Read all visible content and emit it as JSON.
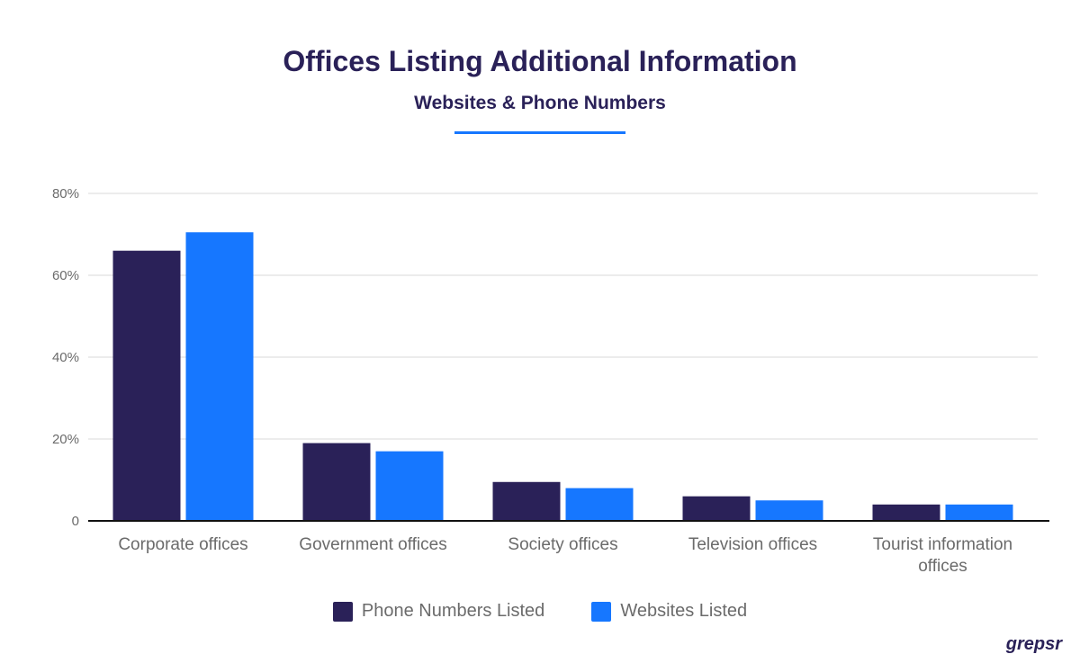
{
  "header": {
    "title": "Offices Listing Additional Information",
    "subtitle": "Websites & Phone Numbers"
  },
  "brand": {
    "name": "grepsr"
  },
  "colors": {
    "phone": "#2a2158",
    "websites": "#1677ff",
    "grid": "#d9d9d9",
    "axis": "#111111"
  },
  "chart_data": {
    "type": "bar",
    "categories": [
      "Corporate offices",
      "Government offices",
      "Society offices",
      "Television offices",
      "Tourist information offices"
    ],
    "category_lines": [
      [
        "Corporate offices"
      ],
      [
        "Government offices"
      ],
      [
        "Society offices"
      ],
      [
        "Television offices"
      ],
      [
        "Tourist information",
        "offices"
      ]
    ],
    "series": [
      {
        "name": "Phone Numbers Listed",
        "values": [
          66,
          19,
          9.5,
          6,
          4
        ],
        "color": "#2a2158"
      },
      {
        "name": "Websites Listed",
        "values": [
          70.5,
          17,
          8,
          5,
          4
        ],
        "color": "#1677ff"
      }
    ],
    "ylim": [
      0,
      80
    ],
    "yticks": [
      0,
      20,
      40,
      60,
      80
    ],
    "ytick_labels": [
      "0",
      "20%",
      "40%",
      "60%",
      "80%"
    ],
    "grid": true,
    "legend_position": "bottom-center"
  }
}
